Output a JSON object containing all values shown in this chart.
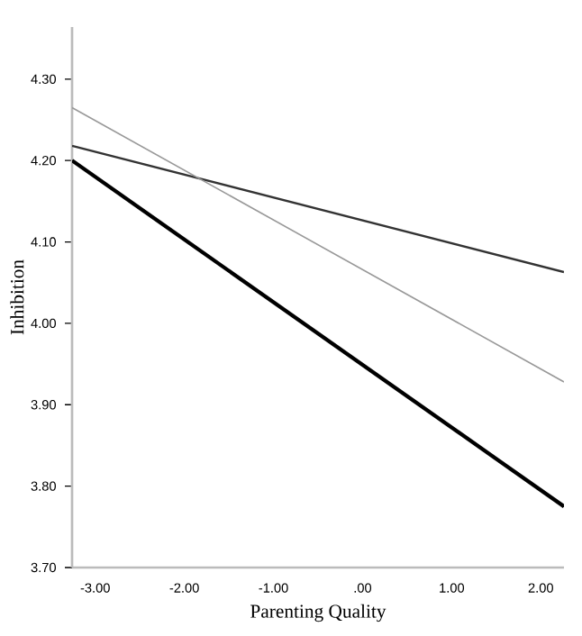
{
  "chart_data": {
    "type": "line",
    "xlabel": "Parenting Quality",
    "ylabel": "Inhibition",
    "x": [
      -3.26,
      2.26
    ],
    "series": [
      {
        "color": "#000000",
        "values": [
          4.2,
          3.775
        ]
      },
      {
        "color": "#333333",
        "values": [
          4.218,
          4.063
        ]
      },
      {
        "color": "#999999",
        "values": [
          4.265,
          3.928
        ]
      }
    ],
    "xlim": [
      -3.26,
      2.26
    ],
    "ylim": [
      3.7,
      4.364
    ],
    "xticks": [
      {
        "value": -3,
        "label": "-3.00"
      },
      {
        "value": -2,
        "label": "-2.00"
      },
      {
        "value": -1,
        "label": "-1.00"
      },
      {
        "value": 0,
        "label": ".00"
      },
      {
        "value": 1,
        "label": "1.00"
      },
      {
        "value": 2,
        "label": "2.00"
      }
    ],
    "yticks": [
      {
        "value": 3.7,
        "label": "3.70"
      },
      {
        "value": 3.8,
        "label": "3.80"
      },
      {
        "value": 3.9,
        "label": "3.90"
      },
      {
        "value": 4.0,
        "label": "4.00"
      },
      {
        "value": 4.1,
        "label": "4.10"
      },
      {
        "value": 4.2,
        "label": "4.20"
      },
      {
        "value": 4.3,
        "label": "4.30"
      }
    ],
    "marker": "none",
    "line_style": "solid"
  }
}
